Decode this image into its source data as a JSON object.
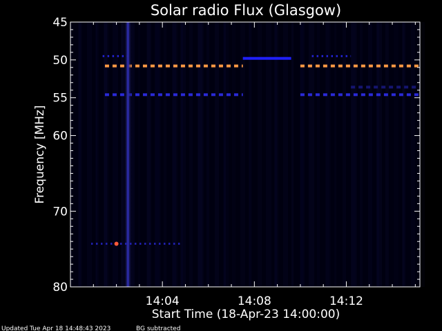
{
  "chart_data": {
    "type": "heatmap",
    "title": "Solar radio Flux (Glasgow)",
    "xlabel": "Start Time (18-Apr-23 14:00:00)",
    "ylabel": "Frequency [MHz]",
    "x_unit": "minutes after 14:00",
    "x_range": [
      0.0,
      15.2
    ],
    "y_range": [
      45,
      80
    ],
    "y_scale": "linear",
    "y_ticks": [
      45,
      50,
      55,
      60,
      70,
      80
    ],
    "y_tick_labels": [
      "45",
      "50",
      "55",
      "60",
      "70",
      "80"
    ],
    "x_ticks": [
      4,
      8,
      12
    ],
    "x_tick_labels": [
      "14:04",
      "14:08",
      "14:12"
    ],
    "grid": false,
    "background_color": "#000010",
    "features": [
      {
        "kind": "dashed-band",
        "freq": 50.8,
        "t_start": 1.5,
        "t_end": 7.5,
        "color": "#ff9944"
      },
      {
        "kind": "dashed-band",
        "freq": 50.8,
        "t_start": 10.0,
        "t_end": 15.2,
        "color": "#ff9944"
      },
      {
        "kind": "solid-band",
        "freq": 49.8,
        "t_start": 7.5,
        "t_end": 9.6,
        "color": "#2020ff"
      },
      {
        "kind": "dotted-band",
        "freq": 49.5,
        "t_start": 1.4,
        "t_end": 2.6,
        "color": "#2222cc"
      },
      {
        "kind": "dotted-band",
        "freq": 49.5,
        "t_start": 10.5,
        "t_end": 12.2,
        "color": "#2222cc"
      },
      {
        "kind": "dashed-band",
        "freq": 54.6,
        "t_start": 1.5,
        "t_end": 7.5,
        "color": "#2a2ad8"
      },
      {
        "kind": "dashed-band",
        "freq": 54.6,
        "t_start": 10.0,
        "t_end": 15.2,
        "color": "#2a2ad8"
      },
      {
        "kind": "dashed-band",
        "freq": 53.6,
        "t_start": 12.2,
        "t_end": 15.2,
        "color": "#151570"
      },
      {
        "kind": "vertical-streak",
        "time": 2.5,
        "freq_start": 45,
        "freq_end": 80,
        "color": "#2a2aa8"
      },
      {
        "kind": "dotted-band",
        "freq": 74.3,
        "t_start": 0.9,
        "t_end": 4.8,
        "color": "#2020aa"
      },
      {
        "kind": "hot-spot",
        "time": 2.0,
        "freq": 74.3,
        "color": "#ff5a3a"
      }
    ]
  },
  "footer": {
    "updated": "Updated Tue Apr 18 14:48:43 2023",
    "bg_note": "BG subtracted"
  }
}
